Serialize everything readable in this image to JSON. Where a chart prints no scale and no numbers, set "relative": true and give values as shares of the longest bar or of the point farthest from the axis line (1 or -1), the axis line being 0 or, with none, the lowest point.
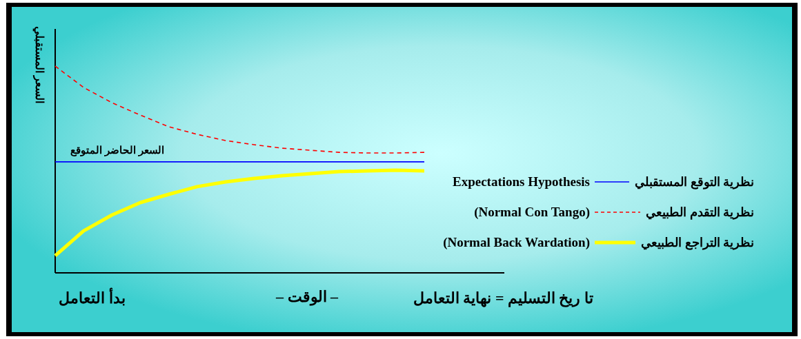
{
  "chart_data": {
    "type": "line",
    "relative": true,
    "categories": [
      null,
      null,
      null,
      null,
      null,
      null,
      null,
      null,
      null,
      null,
      null,
      null,
      null,
      null
    ],
    "xlabel": "– الوقت –",
    "ylabel": "السعر المستقبلي",
    "series": [
      {
        "name": "نظرية التوقع المستقبلي",
        "color": "#0000ff",
        "line_style": "solid",
        "values": [
          0.537,
          0.537,
          0.537,
          0.537,
          0.537,
          0.537,
          0.537,
          0.537,
          0.537,
          0.537,
          0.537,
          0.537,
          0.537,
          0.537
        ]
      },
      {
        "name": "نظرية التقدم الطبيعي",
        "color": "#ff0000",
        "line_style": "dashed",
        "values": [
          1.0,
          0.897,
          0.823,
          0.763,
          0.707,
          0.67,
          0.64,
          0.62,
          0.603,
          0.593,
          0.583,
          0.58,
          0.58,
          0.583
        ]
      },
      {
        "name": "نظرية التراجع الطبيعي",
        "color": "#ffff00",
        "line_style": "solid",
        "values": [
          0.083,
          0.203,
          0.28,
          0.34,
          0.38,
          0.417,
          0.44,
          0.457,
          0.47,
          0.48,
          0.49,
          0.493,
          0.497,
          0.493
        ]
      }
    ],
    "annotations": [
      "بدأ التعامل",
      "تا ريخ التسليم = نهاية التعامل",
      {
        "text": "السعر الحاضر المتوقع",
        "y": 0.537
      },
      "Expectations Hypothesis",
      "(Normal Con Tango)",
      "(Normal Back Wardation)"
    ],
    "legend": "right",
    "grid": false
  }
}
